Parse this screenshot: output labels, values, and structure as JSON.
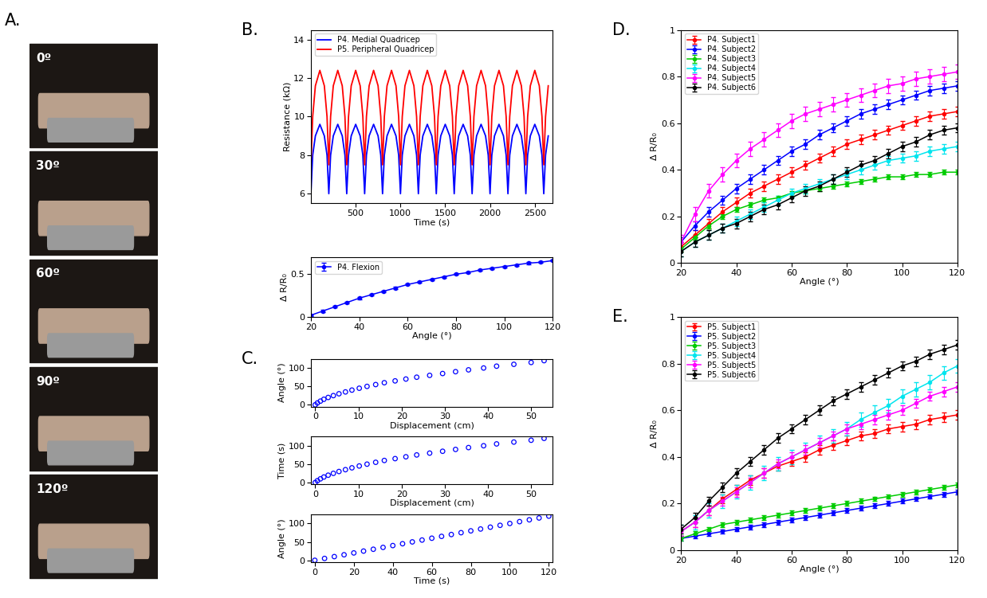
{
  "photo_panel": {
    "panel_label": "A.",
    "angles": [
      "0º",
      "30º",
      "60º",
      "90º",
      "120º"
    ]
  },
  "chart_data": [
    {
      "type": "line",
      "panel_label": "B.",
      "xlabel": "Time (s)",
      "ylabel": "Resistance (kΩ)",
      "xlim": [
        0,
        2700
      ],
      "xticks": [
        500,
        1000,
        1500,
        2000,
        2500
      ],
      "ylim": [
        5.5,
        14.5
      ],
      "yticks": [
        6,
        8,
        10,
        12,
        14
      ],
      "legend": "upper left",
      "x": [
        0,
        20,
        50,
        100,
        150,
        180,
        200,
        220,
        250,
        300,
        350,
        380,
        400,
        420,
        450,
        500,
        550,
        580,
        600,
        620,
        650,
        700,
        750,
        780,
        800,
        820,
        850,
        900,
        950,
        980,
        1000,
        1020,
        1050,
        1100,
        1150,
        1180,
        1200,
        1220,
        1250,
        1300,
        1350,
        1380,
        1400,
        1420,
        1450,
        1500,
        1550,
        1580,
        1600,
        1620,
        1650,
        1700,
        1750,
        1780,
        1800,
        1820,
        1850,
        1900,
        1950,
        1980,
        2000,
        2020,
        2050,
        2100,
        2150,
        2180,
        2200,
        2220,
        2250,
        2300,
        2350,
        2380,
        2400,
        2420,
        2450,
        2500,
        2550,
        2580,
        2600,
        2620,
        2650
      ],
      "series": [
        {
          "name": "P4. Medial Quadricep",
          "color": "#0000ff",
          "values": [
            6.0,
            8.0,
            9.0,
            9.6,
            9.0,
            8.0,
            6.0,
            8.0,
            9.0,
            9.6,
            9.0,
            8.0,
            6.0,
            8.0,
            9.0,
            9.6,
            9.0,
            8.0,
            6.0,
            8.0,
            9.0,
            9.6,
            9.0,
            8.0,
            6.0,
            8.0,
            9.0,
            9.6,
            9.0,
            8.0,
            6.0,
            8.0,
            9.0,
            9.6,
            9.0,
            8.0,
            6.0,
            8.0,
            9.0,
            9.6,
            9.0,
            8.0,
            6.0,
            8.0,
            9.0,
            9.6,
            9.0,
            8.0,
            6.0,
            8.0,
            9.0,
            9.6,
            9.0,
            8.0,
            6.0,
            8.0,
            9.0,
            9.6,
            9.0,
            8.0,
            6.0,
            8.0,
            9.0,
            9.6,
            9.0,
            8.0,
            6.0,
            8.0,
            9.0,
            9.6,
            9.0,
            8.0,
            6.0,
            8.0,
            9.0,
            9.6,
            9.0,
            8.0,
            6.0,
            8.0,
            9.0
          ]
        },
        {
          "name": "P5. Peripheral Quadricep",
          "color": "#ff0000",
          "values": [
            7.5,
            10.0,
            11.6,
            12.4,
            11.6,
            10.0,
            7.5,
            10.0,
            11.6,
            12.4,
            11.6,
            10.0,
            7.5,
            10.0,
            11.6,
            12.4,
            11.6,
            10.0,
            7.5,
            10.0,
            11.6,
            12.4,
            11.6,
            10.0,
            7.5,
            10.0,
            11.6,
            12.4,
            11.6,
            10.0,
            7.5,
            10.0,
            11.6,
            12.4,
            11.6,
            10.0,
            7.5,
            10.0,
            11.6,
            12.4,
            11.6,
            10.0,
            7.5,
            10.0,
            11.6,
            12.4,
            11.6,
            10.0,
            7.5,
            10.0,
            11.6,
            12.4,
            11.6,
            10.0,
            7.5,
            10.0,
            11.6,
            12.4,
            11.6,
            10.0,
            7.5,
            10.0,
            11.6,
            12.4,
            11.6,
            10.0,
            7.5,
            10.0,
            11.6,
            12.4,
            11.6,
            10.0,
            7.5,
            10.0,
            11.6,
            12.4,
            11.6,
            10.0,
            7.5,
            10.0,
            11.6
          ]
        }
      ]
    },
    {
      "type": "line",
      "xlabel": "Angle (°)",
      "ylabel": "Δ R/R₀",
      "xlim": [
        20,
        120
      ],
      "xticks": [
        20,
        40,
        60,
        80,
        100,
        120
      ],
      "ylim": [
        0,
        0.7
      ],
      "yticks": [
        0,
        0.5
      ],
      "legend": "upper left",
      "x": [
        20,
        25,
        30,
        35,
        40,
        45,
        50,
        55,
        60,
        65,
        70,
        75,
        80,
        85,
        90,
        95,
        100,
        105,
        110,
        115,
        120
      ],
      "series": [
        {
          "name": "P4. Flexion",
          "color": "#0000ff",
          "marker": "o",
          "error": 0.01,
          "values": [
            0.02,
            0.07,
            0.12,
            0.17,
            0.22,
            0.26,
            0.3,
            0.34,
            0.38,
            0.41,
            0.44,
            0.47,
            0.5,
            0.52,
            0.55,
            0.57,
            0.59,
            0.61,
            0.63,
            0.64,
            0.66
          ]
        }
      ]
    },
    {
      "type": "scatter",
      "panel_label": "C.",
      "xlabel": "Displacement (cm)",
      "ylabel": "Angle (°)",
      "xlim": [
        -1,
        55
      ],
      "xticks": [
        0,
        10,
        20,
        30,
        40,
        50
      ],
      "ylim": [
        -5,
        125
      ],
      "yticks": [
        0,
        50,
        100
      ],
      "x": [
        0,
        0.5,
        1.2,
        2,
        3,
        4.2,
        5.5,
        7,
        8.5,
        10.2,
        12,
        14,
        16,
        18.5,
        21,
        23.5,
        26.5,
        29.5,
        32.5,
        35.5,
        39,
        42,
        46,
        50,
        53
      ],
      "series": [
        {
          "color": "#0000ff",
          "marker": "o",
          "values": [
            0,
            5,
            10,
            15,
            20,
            25,
            30,
            35,
            40,
            45,
            50,
            55,
            60,
            65,
            70,
            75,
            80,
            85,
            90,
            95,
            100,
            105,
            110,
            115,
            120
          ]
        }
      ]
    },
    {
      "type": "scatter",
      "xlabel": "Displacement (cm)",
      "ylabel": "Time (s)",
      "xlim": [
        -1,
        55
      ],
      "xticks": [
        0,
        10,
        20,
        30,
        40,
        50
      ],
      "ylim": [
        -5,
        125
      ],
      "yticks": [
        0,
        50,
        100
      ],
      "x": [
        0,
        0.5,
        1.2,
        2,
        3,
        4.2,
        5.5,
        7,
        8.5,
        10.2,
        12,
        14,
        16,
        18.5,
        21,
        23.5,
        26.5,
        29.5,
        32.5,
        35.5,
        39,
        42,
        46,
        50,
        53
      ],
      "series": [
        {
          "color": "#0000ff",
          "marker": "o",
          "values": [
            0,
            5,
            10,
            15,
            20,
            25,
            30,
            35,
            40,
            45,
            50,
            55,
            60,
            65,
            70,
            75,
            80,
            85,
            90,
            95,
            100,
            105,
            110,
            115,
            120
          ]
        }
      ]
    },
    {
      "type": "scatter",
      "xlabel": "Time (s)",
      "ylabel": "Angle (°)",
      "xlim": [
        -2,
        122
      ],
      "xticks": [
        0,
        20,
        40,
        60,
        80,
        100,
        120
      ],
      "ylim": [
        -5,
        125
      ],
      "yticks": [
        0,
        50,
        100
      ],
      "x": [
        0,
        5,
        10,
        15,
        20,
        25,
        30,
        35,
        40,
        45,
        50,
        55,
        60,
        65,
        70,
        75,
        80,
        85,
        90,
        95,
        100,
        105,
        110,
        115,
        120
      ],
      "series": [
        {
          "color": "#0000ff",
          "marker": "o",
          "values": [
            0,
            5,
            10,
            15,
            20,
            25,
            30,
            35,
            40,
            45,
            50,
            55,
            60,
            65,
            70,
            75,
            80,
            85,
            90,
            95,
            100,
            105,
            110,
            115,
            120
          ]
        }
      ]
    },
    {
      "type": "line",
      "panel_label": "D.",
      "xlabel": "Angle (°)",
      "ylabel": "Δ R/R₀",
      "xlim": [
        20,
        120
      ],
      "xticks": [
        20,
        40,
        60,
        80,
        100,
        120
      ],
      "ylim": [
        0,
        1
      ],
      "yticks": [
        0,
        0.2,
        0.4,
        0.6,
        0.8,
        1
      ],
      "legend": "upper left",
      "x": [
        20,
        25,
        30,
        35,
        40,
        45,
        50,
        55,
        60,
        65,
        70,
        75,
        80,
        85,
        90,
        95,
        100,
        105,
        110,
        115,
        120
      ],
      "series": [
        {
          "name": "P4. Subject1",
          "color": "#ff0000",
          "marker": "o",
          "error": 0.02,
          "values": [
            0.07,
            0.12,
            0.17,
            0.22,
            0.26,
            0.3,
            0.33,
            0.36,
            0.39,
            0.42,
            0.45,
            0.48,
            0.51,
            0.53,
            0.55,
            0.57,
            0.59,
            0.61,
            0.63,
            0.64,
            0.65
          ]
        },
        {
          "name": "P4. Subject2",
          "color": "#0000ff",
          "marker": "o",
          "error": 0.02,
          "values": [
            0.09,
            0.16,
            0.22,
            0.27,
            0.32,
            0.36,
            0.4,
            0.44,
            0.48,
            0.51,
            0.55,
            0.58,
            0.61,
            0.64,
            0.66,
            0.68,
            0.7,
            0.72,
            0.74,
            0.75,
            0.76
          ]
        },
        {
          "name": "P4. Subject3",
          "color": "#00cc00",
          "marker": "o",
          "error": 0.01,
          "values": [
            0.06,
            0.11,
            0.16,
            0.2,
            0.23,
            0.25,
            0.27,
            0.28,
            0.3,
            0.31,
            0.32,
            0.33,
            0.34,
            0.35,
            0.36,
            0.37,
            0.37,
            0.38,
            0.38,
            0.39,
            0.39
          ]
        },
        {
          "name": "P4. Subject4",
          "color": "#00e5ee",
          "marker": "o",
          "error": 0.02,
          "values": [
            0.05,
            0.09,
            0.12,
            0.15,
            0.18,
            0.21,
            0.24,
            0.27,
            0.3,
            0.32,
            0.34,
            0.36,
            0.38,
            0.4,
            0.42,
            0.44,
            0.45,
            0.46,
            0.48,
            0.49,
            0.5
          ]
        },
        {
          "name": "P4. Subject5",
          "color": "#ff00ff",
          "marker": "o",
          "error": 0.03,
          "values": [
            0.09,
            0.21,
            0.31,
            0.38,
            0.44,
            0.49,
            0.53,
            0.57,
            0.61,
            0.64,
            0.66,
            0.68,
            0.7,
            0.72,
            0.74,
            0.76,
            0.77,
            0.79,
            0.8,
            0.81,
            0.82
          ]
        },
        {
          "name": "P4. Subject6",
          "color": "#000000",
          "marker": "o",
          "error": 0.02,
          "values": [
            0.05,
            0.09,
            0.12,
            0.15,
            0.17,
            0.2,
            0.23,
            0.25,
            0.28,
            0.31,
            0.33,
            0.36,
            0.39,
            0.42,
            0.44,
            0.47,
            0.5,
            0.52,
            0.55,
            0.57,
            0.58
          ]
        }
      ]
    },
    {
      "type": "line",
      "panel_label": "E.",
      "xlabel": "Angle (°)",
      "ylabel": "Δ R/R₀",
      "xlim": [
        20,
        120
      ],
      "xticks": [
        20,
        40,
        60,
        80,
        100,
        120
      ],
      "ylim": [
        0,
        1
      ],
      "yticks": [
        0,
        0.2,
        0.4,
        0.6,
        0.8,
        1
      ],
      "legend": "upper left",
      "x": [
        20,
        25,
        30,
        35,
        40,
        45,
        50,
        55,
        60,
        65,
        70,
        75,
        80,
        85,
        90,
        95,
        100,
        105,
        110,
        115,
        120
      ],
      "series": [
        {
          "name": "P5. Subject1",
          "color": "#ff0000",
          "marker": "o",
          "error": 0.02,
          "values": [
            0.08,
            0.12,
            0.17,
            0.22,
            0.26,
            0.3,
            0.33,
            0.36,
            0.38,
            0.4,
            0.43,
            0.45,
            0.47,
            0.49,
            0.5,
            0.52,
            0.53,
            0.54,
            0.56,
            0.57,
            0.58
          ]
        },
        {
          "name": "P5. Subject2",
          "color": "#0000ff",
          "marker": "o",
          "error": 0.01,
          "values": [
            0.05,
            0.06,
            0.07,
            0.08,
            0.09,
            0.1,
            0.11,
            0.12,
            0.13,
            0.14,
            0.15,
            0.16,
            0.17,
            0.18,
            0.19,
            0.2,
            0.21,
            0.22,
            0.23,
            0.24,
            0.25
          ]
        },
        {
          "name": "P5. Subject3",
          "color": "#00cc00",
          "marker": "o",
          "error": 0.01,
          "values": [
            0.05,
            0.07,
            0.09,
            0.11,
            0.12,
            0.13,
            0.14,
            0.15,
            0.16,
            0.17,
            0.18,
            0.19,
            0.2,
            0.21,
            0.22,
            0.23,
            0.24,
            0.25,
            0.26,
            0.27,
            0.28
          ]
        },
        {
          "name": "P5. Subject4",
          "color": "#00e5ee",
          "marker": "o",
          "error": 0.03,
          "values": [
            0.08,
            0.12,
            0.17,
            0.21,
            0.25,
            0.29,
            0.33,
            0.37,
            0.4,
            0.43,
            0.46,
            0.49,
            0.52,
            0.56,
            0.59,
            0.62,
            0.66,
            0.69,
            0.72,
            0.76,
            0.79
          ]
        },
        {
          "name": "P5. Subject5",
          "color": "#ff00ff",
          "marker": "o",
          "error": 0.02,
          "values": [
            0.08,
            0.12,
            0.17,
            0.21,
            0.25,
            0.29,
            0.33,
            0.37,
            0.4,
            0.43,
            0.46,
            0.49,
            0.52,
            0.54,
            0.56,
            0.58,
            0.6,
            0.63,
            0.66,
            0.68,
            0.7
          ]
        },
        {
          "name": "P5. Subject6",
          "color": "#000000",
          "marker": "o",
          "error": 0.02,
          "values": [
            0.09,
            0.14,
            0.21,
            0.27,
            0.33,
            0.38,
            0.43,
            0.48,
            0.52,
            0.56,
            0.6,
            0.64,
            0.67,
            0.7,
            0.73,
            0.76,
            0.79,
            0.81,
            0.84,
            0.86,
            0.88
          ]
        }
      ]
    }
  ]
}
